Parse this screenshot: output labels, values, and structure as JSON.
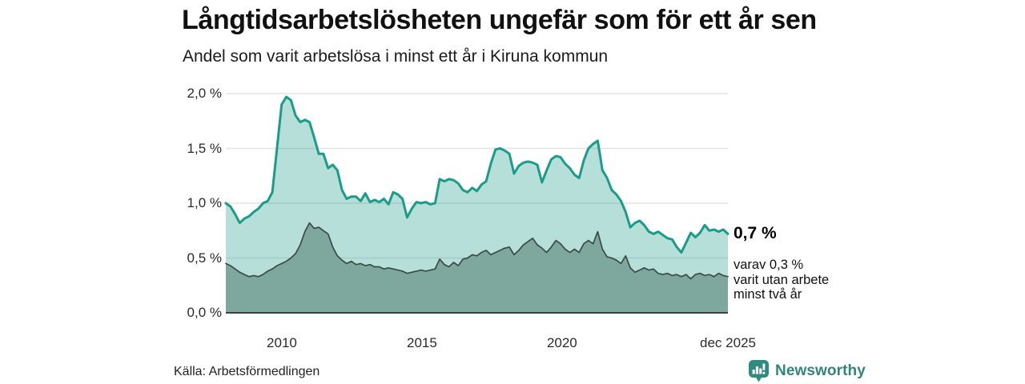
{
  "header": {
    "title": "Långtidsarbetslösheten ungefär som för ett år sen",
    "subtitle": "Andel som varit arbetslösa i minst ett år i Kiruna kommun"
  },
  "annotation": {
    "value": "0,7 %",
    "detail_lines": [
      "varav 0,3 %",
      "varit utan arbete",
      "minst två år"
    ]
  },
  "footer": {
    "source": "Källa: Arbetsförmedlingen",
    "brand": "Newsworthy"
  },
  "colors": {
    "accent_teal": "#1b9c88",
    "light_fill": "rgba(31,156,137,0.32)",
    "dark_fill": "#7ea89e",
    "dark_stroke": "#394b45",
    "grid": "#e3e3e3",
    "axis": "#404040",
    "brand_teal": "#33857a"
  },
  "chart_data": {
    "type": "area",
    "title": "Långtidsarbetslösheten ungefär som för ett år sen",
    "subtitle": "Andel som varit arbetslösa i minst ett år i Kiruna kommun",
    "unit": "%",
    "grid": true,
    "legend_position": "none",
    "x_min": 2008.0,
    "x_max": 2025.92,
    "ylim": [
      0,
      2.0
    ],
    "x_ticks": [
      {
        "year": 2010,
        "label": "2010"
      },
      {
        "year": 2015,
        "label": "2015"
      },
      {
        "year": 2020,
        "label": "2020"
      },
      {
        "year": 2025.92,
        "label": "dec 2025"
      }
    ],
    "y_ticks": [
      {
        "v": 2.0,
        "label": "2,0 %"
      },
      {
        "v": 1.5,
        "label": "1,5 %"
      },
      {
        "v": 1.0,
        "label": "1,0 %"
      },
      {
        "v": 0.5,
        "label": "0,5 %"
      },
      {
        "v": 0.0,
        "label": "0,0 %"
      }
    ],
    "series": [
      {
        "name": "Andel arbetslösa minst ett år",
        "end_value_label": "0,7 %",
        "line_color": "#1b9c88",
        "fill_color": "rgba(31,156,137,0.32)",
        "line_width": 3,
        "values": [
          1.0,
          0.97,
          0.9,
          0.82,
          0.86,
          0.88,
          0.92,
          0.95,
          1.0,
          1.02,
          1.1,
          1.5,
          1.9,
          1.97,
          1.94,
          1.8,
          1.74,
          1.76,
          1.74,
          1.6,
          1.45,
          1.45,
          1.32,
          1.35,
          1.3,
          1.12,
          1.04,
          1.06,
          1.06,
          1.02,
          1.09,
          1.01,
          1.03,
          1.01,
          1.04,
          0.99,
          1.1,
          1.08,
          1.04,
          0.87,
          0.95,
          1.01,
          1.0,
          1.01,
          0.99,
          1.0,
          1.22,
          1.2,
          1.22,
          1.21,
          1.18,
          1.12,
          1.1,
          1.14,
          1.11,
          1.17,
          1.2,
          1.36,
          1.49,
          1.5,
          1.48,
          1.45,
          1.27,
          1.34,
          1.37,
          1.38,
          1.37,
          1.35,
          1.19,
          1.3,
          1.4,
          1.43,
          1.42,
          1.36,
          1.32,
          1.26,
          1.23,
          1.39,
          1.5,
          1.54,
          1.57,
          1.3,
          1.23,
          1.12,
          1.08,
          1.02,
          0.92,
          0.78,
          0.82,
          0.84,
          0.8,
          0.74,
          0.72,
          0.74,
          0.71,
          0.68,
          0.67,
          0.6,
          0.55,
          0.64,
          0.73,
          0.69,
          0.73,
          0.8,
          0.75,
          0.76,
          0.74,
          0.76,
          0.72
        ]
      },
      {
        "name": "varav utan arbete minst två år",
        "end_value_label": "0,3 %",
        "line_color": "#394b45",
        "fill_color": "#7ea89e",
        "line_width": 1.7,
        "values": [
          0.45,
          0.43,
          0.4,
          0.37,
          0.35,
          0.33,
          0.34,
          0.33,
          0.35,
          0.38,
          0.4,
          0.43,
          0.45,
          0.47,
          0.5,
          0.54,
          0.62,
          0.74,
          0.82,
          0.77,
          0.78,
          0.75,
          0.72,
          0.6,
          0.52,
          0.48,
          0.45,
          0.47,
          0.44,
          0.45,
          0.43,
          0.44,
          0.42,
          0.42,
          0.4,
          0.41,
          0.4,
          0.39,
          0.38,
          0.36,
          0.37,
          0.38,
          0.39,
          0.38,
          0.39,
          0.4,
          0.49,
          0.44,
          0.42,
          0.46,
          0.43,
          0.49,
          0.5,
          0.53,
          0.52,
          0.55,
          0.57,
          0.53,
          0.55,
          0.57,
          0.59,
          0.6,
          0.53,
          0.57,
          0.62,
          0.65,
          0.68,
          0.62,
          0.59,
          0.55,
          0.6,
          0.66,
          0.63,
          0.58,
          0.55,
          0.58,
          0.55,
          0.63,
          0.66,
          0.63,
          0.74,
          0.58,
          0.51,
          0.5,
          0.48,
          0.45,
          0.52,
          0.41,
          0.37,
          0.39,
          0.41,
          0.39,
          0.4,
          0.36,
          0.35,
          0.36,
          0.34,
          0.35,
          0.33,
          0.35,
          0.31,
          0.35,
          0.36,
          0.34,
          0.35,
          0.33,
          0.36,
          0.34,
          0.33
        ]
      }
    ]
  }
}
